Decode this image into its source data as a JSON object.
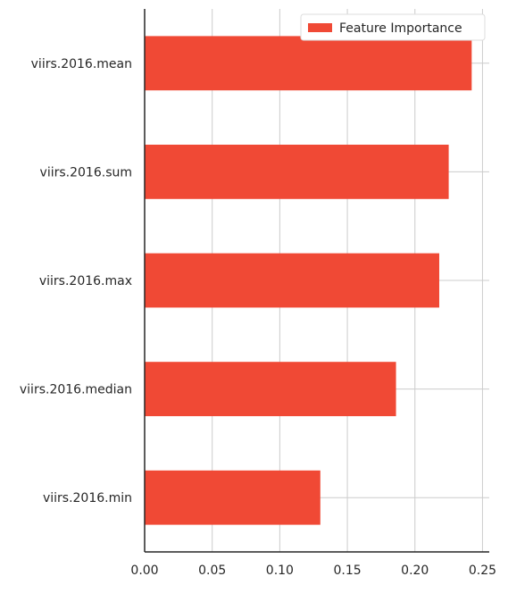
{
  "chart_data": {
    "type": "bar",
    "orientation": "horizontal",
    "categories": [
      "viirs.2016.mean",
      "viirs.2016.sum",
      "viirs.2016.max",
      "viirs.2016.median",
      "viirs.2016.min"
    ],
    "series": [
      {
        "name": "Feature Importance",
        "values": [
          0.242,
          0.225,
          0.218,
          0.186,
          0.13
        ],
        "color": "#f04935"
      }
    ],
    "xlim": [
      0.0,
      0.255
    ],
    "xticks": [
      0.0,
      0.05,
      0.1,
      0.15,
      0.2,
      0.25
    ],
    "xtick_labels": [
      "0.00",
      "0.05",
      "0.10",
      "0.15",
      "0.20",
      "0.25"
    ],
    "title": "",
    "xlabel": "",
    "ylabel": "",
    "grid": true,
    "legend": {
      "entries": [
        "Feature Importance"
      ],
      "placement": "top-right"
    }
  },
  "colors": {
    "grid": "#cccccc",
    "axis": "#262626",
    "text": "#262626"
  }
}
